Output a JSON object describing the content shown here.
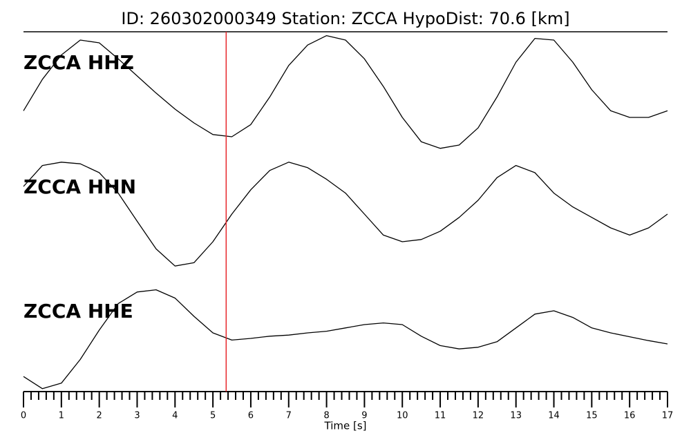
{
  "chart_data": {
    "type": "line",
    "title": "ID: 260302000349   Station: ZCCA   HypoDist:    70.6 [km]",
    "xlabel": "Time [s]",
    "xlim": [
      0,
      17
    ],
    "xticks": [
      0,
      1,
      2,
      3,
      4,
      5,
      6,
      7,
      8,
      9,
      10,
      11,
      12,
      13,
      14,
      15,
      16,
      17
    ],
    "xminorticks": [
      0.2,
      0.4,
      0.6,
      0.8,
      1.2,
      1.4,
      1.6,
      1.8,
      2.2,
      2.4,
      2.6,
      2.8,
      3.2,
      3.4,
      3.6,
      3.8,
      4.2,
      4.4,
      4.6,
      4.8,
      5.2,
      5.4,
      5.6,
      5.8,
      6.2,
      6.4,
      6.6,
      6.8,
      7.2,
      7.4,
      7.6,
      7.8,
      8.2,
      8.4,
      8.6,
      8.8,
      9.2,
      9.4,
      9.6,
      9.8,
      10.2,
      10.4,
      10.6,
      10.8,
      11.2,
      11.4,
      11.6,
      11.8,
      12.2,
      12.4,
      12.6,
      12.8,
      13.2,
      13.4,
      13.6,
      13.8,
      14.2,
      14.4,
      14.6,
      14.8,
      15.2,
      15.4,
      15.6,
      15.8,
      16.2,
      16.4,
      16.6,
      16.8
    ],
    "pick": {
      "x": 5.35,
      "color": "#e8262b"
    },
    "label_color": "#4c9a00",
    "x": [
      0,
      0.5,
      1,
      1.5,
      2,
      2.5,
      3,
      3.5,
      4,
      4.5,
      5,
      5.5,
      6,
      6.5,
      7,
      7.5,
      8,
      8.5,
      9,
      9.5,
      10,
      10.5,
      11,
      11.5,
      12,
      12.5,
      13,
      13.5,
      14,
      14.5,
      15,
      15.5,
      16,
      16.5,
      17
    ],
    "series": [
      {
        "name": "ZCCA HHZ",
        "color": "#000000",
        "ylim": [
          -1.2,
          1.2
        ],
        "values": [
          -0.38,
          0.19,
          0.63,
          0.9,
          0.85,
          0.56,
          0.25,
          -0.06,
          -0.35,
          -0.6,
          -0.81,
          -0.85,
          -0.63,
          -0.13,
          0.44,
          0.81,
          0.98,
          0.9,
          0.56,
          0.06,
          -0.5,
          -0.94,
          -1.06,
          -1,
          -0.69,
          -0.13,
          0.5,
          0.93,
          0.9,
          0.5,
          0,
          -0.38,
          -0.5,
          -0.5,
          -0.38
        ]
      },
      {
        "name": "ZCCA HHN",
        "color": "#000000",
        "ylim": [
          -1.2,
          1.2
        ],
        "values": [
          0.5,
          0.88,
          0.94,
          0.91,
          0.75,
          0.38,
          -0.13,
          -0.63,
          -0.94,
          -0.88,
          -0.5,
          0,
          0.44,
          0.79,
          0.94,
          0.84,
          0.63,
          0.38,
          0,
          -0.38,
          -0.5,
          -0.46,
          -0.31,
          -0.06,
          0.25,
          0.66,
          0.88,
          0.75,
          0.38,
          0.13,
          -0.06,
          -0.25,
          -0.38,
          -0.25,
          0
        ]
      },
      {
        "name": "ZCCA HHE",
        "color": "#000000",
        "ylim": [
          -1.2,
          1.2
        ],
        "values": [
          -0.69,
          -0.91,
          -0.81,
          -0.38,
          0.15,
          0.63,
          0.84,
          0.88,
          0.73,
          0.4,
          0.1,
          -0.03,
          0,
          0.04,
          0.06,
          0.1,
          0.13,
          0.19,
          0.25,
          0.28,
          0.25,
          0.04,
          -0.13,
          -0.19,
          -0.16,
          -0.06,
          0.19,
          0.44,
          0.5,
          0.38,
          0.19,
          0.1,
          0.03,
          -0.04,
          -0.1
        ]
      }
    ]
  }
}
